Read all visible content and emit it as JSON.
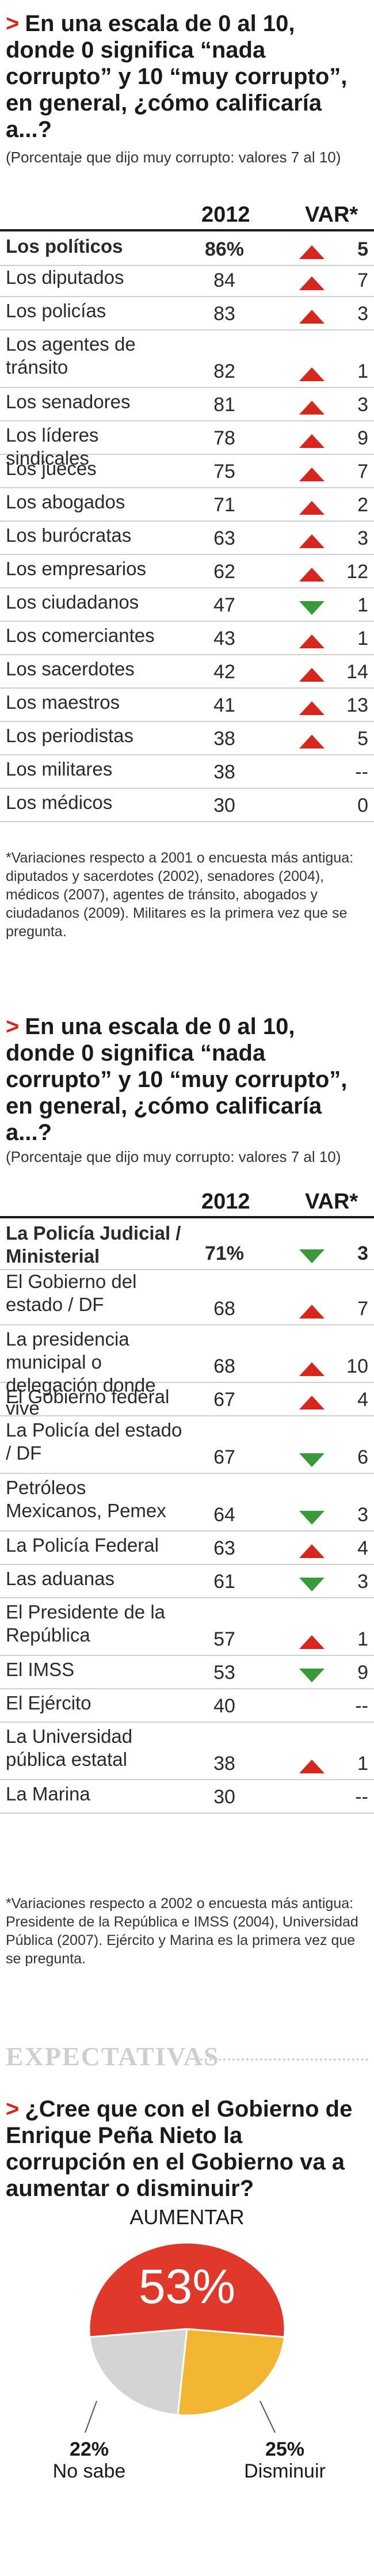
{
  "table1": {
    "question": "En una escala de 0 al 10, donde 0 significa “nada corrupto” y 10 “muy corrupto”, en general, ¿cómo calificaría a...?",
    "subtitle": "(Porcentaje que dijo muy corrupto: valores 7 al 10)",
    "col_year": "2012",
    "col_var": "VAR*",
    "rows": [
      {
        "label": "Los políticos",
        "value": "86%",
        "var": "5",
        "dir": "up",
        "bold": true
      },
      {
        "label": "Los diputados",
        "value": "84",
        "var": "7",
        "dir": "up"
      },
      {
        "label": "Los policías",
        "value": "83",
        "var": "3",
        "dir": "up"
      },
      {
        "label": "Los agentes de tránsito",
        "value": "82",
        "var": "1",
        "dir": "up"
      },
      {
        "label": "Los senadores",
        "value": "81",
        "var": "3",
        "dir": "up"
      },
      {
        "label": "Los líderes sindicales",
        "value": "78",
        "var": "9",
        "dir": "up"
      },
      {
        "label": "Los jueces",
        "value": "75",
        "var": "7",
        "dir": "up"
      },
      {
        "label": "Los abogados",
        "value": "71",
        "var": "2",
        "dir": "up"
      },
      {
        "label": "Los burócratas",
        "value": "63",
        "var": "3",
        "dir": "up"
      },
      {
        "label": "Los empresarios",
        "value": "62",
        "var": "12",
        "dir": "up"
      },
      {
        "label": "Los ciudadanos",
        "value": "47",
        "var": "1",
        "dir": "down"
      },
      {
        "label": "Los comerciantes",
        "value": "43",
        "var": "1",
        "dir": "up"
      },
      {
        "label": "Los sacerdotes",
        "value": "42",
        "var": "14",
        "dir": "up"
      },
      {
        "label": "Los maestros",
        "value": "41",
        "var": "13",
        "dir": "up"
      },
      {
        "label": "Los periodistas",
        "value": "38",
        "var": "5",
        "dir": "up"
      },
      {
        "label": "Los militares",
        "value": "38",
        "var": "--",
        "dir": "none"
      },
      {
        "label": "Los médicos",
        "value": "30",
        "var": "0",
        "dir": "none"
      }
    ],
    "note": "*Variaciones respecto a 2001 o encuesta más antigua: diputados y sacerdotes (2002), senadores (2004), médicos (2007), agentes de tránsito, abogados y ciudadanos (2009). Militares es la primera vez que se pregunta."
  },
  "table2": {
    "question": "En una escala de 0 al 10, donde 0 significa “nada corrupto” y 10 “muy corrupto”, en general, ¿cómo calificaría a...?",
    "subtitle": "(Porcentaje que dijo muy corrupto: valores 7 al 10)",
    "col_year": "2012",
    "col_var": "VAR*",
    "rows": [
      {
        "label": "La Policía Judicial / Ministerial",
        "value": "71%",
        "var": "3",
        "dir": "down",
        "bold": true
      },
      {
        "label": "El Gobierno del estado / DF",
        "value": "68",
        "var": "7",
        "dir": "up"
      },
      {
        "label": "La presidencia municipal o delegación donde vive",
        "value": "68",
        "var": "10",
        "dir": "up"
      },
      {
        "label": "El Gobierno federal",
        "value": "67",
        "var": "4",
        "dir": "up"
      },
      {
        "label": "La Policía del estado / DF",
        "value": "67",
        "var": "6",
        "dir": "down"
      },
      {
        "label": "Petróleos Mexicanos, Pemex",
        "value": "64",
        "var": "3",
        "dir": "down"
      },
      {
        "label": "La Policía Federal",
        "value": "63",
        "var": "4",
        "dir": "up"
      },
      {
        "label": "Las aduanas",
        "value": "61",
        "var": "3",
        "dir": "down"
      },
      {
        "label": "El Presidente de la República",
        "value": "57",
        "var": "1",
        "dir": "up"
      },
      {
        "label": "El IMSS",
        "value": "53",
        "var": "9",
        "dir": "down"
      },
      {
        "label": "El Ejército",
        "value": "40",
        "var": "--",
        "dir": "none"
      },
      {
        "label": "La Universidad pública estatal",
        "value": "38",
        "var": "1",
        "dir": "up"
      },
      {
        "label": "La Marina",
        "value": "30",
        "var": "--",
        "dir": "none"
      }
    ],
    "note": "*Variaciones respecto a 2002 o encuesta más antigua: Presidente de la República e IMSS (2004), Universidad Pública (2007). Ejército y Marina es la primera vez que se pregunta."
  },
  "expectativas": {
    "kicker": "EXPECTATIVAS",
    "question": "¿Cree que con el Gobierno de Enrique Peña Nieto la corrupción en el Gobierno va a aumentar o disminuir?",
    "top_label": "AUMENTAR",
    "big_value": "53%",
    "left_value": "22%",
    "left_label": "No sabe",
    "right_value": "25%",
    "right_label": "Disminuir"
  },
  "colors": {
    "up": "#d7261e",
    "down": "#3a9a3a",
    "pie_red": "#e0382b",
    "pie_yellow": "#f2b632",
    "pie_grey": "#d4d4d4"
  },
  "chart_data": [
    {
      "type": "table",
      "title": "En una escala de 0 al 10, donde 0 significa “nada corrupto” y 10 “muy corrupto”, en general, ¿cómo calificaría a...?",
      "columns": [
        "2012",
        "VAR*"
      ],
      "categories": [
        "Los políticos",
        "Los diputados",
        "Los policías",
        "Los agentes de tránsito",
        "Los senadores",
        "Los líderes sindicales",
        "Los jueces",
        "Los abogados",
        "Los burócratas",
        "Los empresarios",
        "Los ciudadanos",
        "Los comerciantes",
        "Los sacerdotes",
        "Los maestros",
        "Los periodistas",
        "Los militares",
        "Los médicos"
      ],
      "values": [
        86,
        84,
        83,
        82,
        81,
        78,
        75,
        71,
        63,
        62,
        47,
        43,
        42,
        41,
        38,
        38,
        30
      ],
      "var": [
        5,
        7,
        3,
        1,
        3,
        9,
        7,
        2,
        3,
        12,
        -1,
        1,
        14,
        13,
        5,
        null,
        0
      ]
    },
    {
      "type": "table",
      "title": "En una escala de 0 al 10, donde 0 significa “nada corrupto” y 10 “muy corrupto”, en general, ¿cómo calificaría a...?",
      "columns": [
        "2012",
        "VAR*"
      ],
      "categories": [
        "La Policía Judicial / Ministerial",
        "El Gobierno del estado / DF",
        "La presidencia municipal o delegación donde vive",
        "El Gobierno federal",
        "La Policía del estado / DF",
        "Petróleos Mexicanos, Pemex",
        "La Policía Federal",
        "Las aduanas",
        "El Presidente de la República",
        "El IMSS",
        "El Ejército",
        "La Universidad pública estatal",
        "La Marina"
      ],
      "values": [
        71,
        68,
        68,
        67,
        67,
        64,
        63,
        61,
        57,
        53,
        40,
        38,
        30
      ],
      "var": [
        -3,
        7,
        10,
        4,
        -6,
        -3,
        4,
        -3,
        1,
        -9,
        null,
        1,
        null
      ]
    },
    {
      "type": "pie",
      "title": "¿Cree que con el Gobierno de Enrique Peña Nieto la corrupción en el Gobierno va a aumentar o disminuir?",
      "categories": [
        "AUMENTAR",
        "Disminuir",
        "No sabe"
      ],
      "values": [
        53,
        25,
        22
      ]
    }
  ]
}
